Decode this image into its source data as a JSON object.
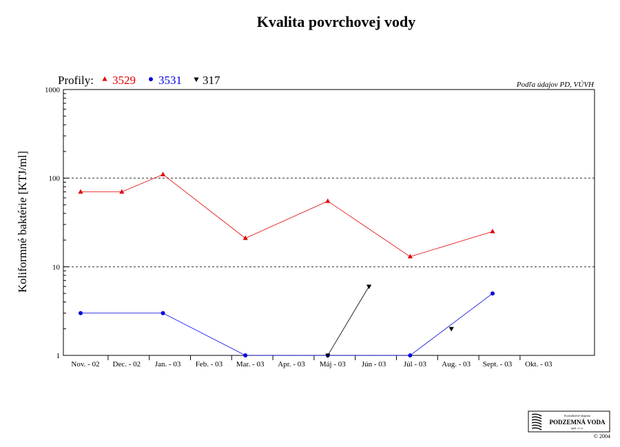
{
  "chart_data": {
    "type": "line",
    "title": "Kvalita povrchovej vody",
    "ylabel": "Koliformné  baktérie [KTJ/ml]",
    "xlabel": "",
    "y_scale": "log",
    "ylim": [
      1,
      1000
    ],
    "y_ticks": [
      "1",
      "10",
      "100",
      "1000"
    ],
    "y_gridlines": [
      10,
      100
    ],
    "grid": "horizontal dashed at 10 and 100",
    "categories": [
      "Nov. - 02",
      "Dec. - 02",
      "Jan. - 03",
      "Feb. - 03",
      "Mar. - 03",
      "Apr. - 03",
      "Máj - 03",
      "Jún - 03",
      "Júl - 03",
      "Aug. - 03",
      "Sept. - 03",
      "Okt. - 03"
    ],
    "legend_prefix": "Profily:",
    "legend_placement": "top-left",
    "source_note": "Podľa údajov PD, VÚVH",
    "series": [
      {
        "name": "3529",
        "color": "#e00000",
        "marker": "triangle-up",
        "points": [
          {
            "x": "Nov. - 02",
            "y": 70
          },
          {
            "x": "Dec. - 02",
            "y": 70
          },
          {
            "x": "Jan. - 03",
            "y": 110
          },
          {
            "x": "Mar. - 03",
            "y": 21
          },
          {
            "x": "Máj - 03",
            "y": 55
          },
          {
            "x": "Júl - 03",
            "y": 13
          },
          {
            "x": "Sept. - 03",
            "y": 25
          }
        ]
      },
      {
        "name": "3531",
        "color": "#0000e0",
        "marker": "circle",
        "points": [
          {
            "x": "Nov. - 02",
            "y": 3
          },
          {
            "x": "Jan. - 03",
            "y": 3
          },
          {
            "x": "Mar. - 03",
            "y": 1
          },
          {
            "x": "Máj - 03",
            "y": 1
          },
          {
            "x": "Júl - 03",
            "y": 1
          },
          {
            "x": "Sept. - 03",
            "y": 5
          }
        ]
      },
      {
        "name": "317",
        "color": "#000000",
        "marker": "triangle-down",
        "points": [
          {
            "x": "Máj - 03",
            "y": 1
          },
          {
            "x": "Jún - 03",
            "y": 6
          },
          {
            "x": "Aug. - 03",
            "y": 2
          }
        ]
      }
    ]
  },
  "logo": {
    "line1": "Konzultačné skupina",
    "line2": "PODZEMNÁ VODA",
    "line3": "spol. s r.o.",
    "copyright": "© 2004"
  }
}
